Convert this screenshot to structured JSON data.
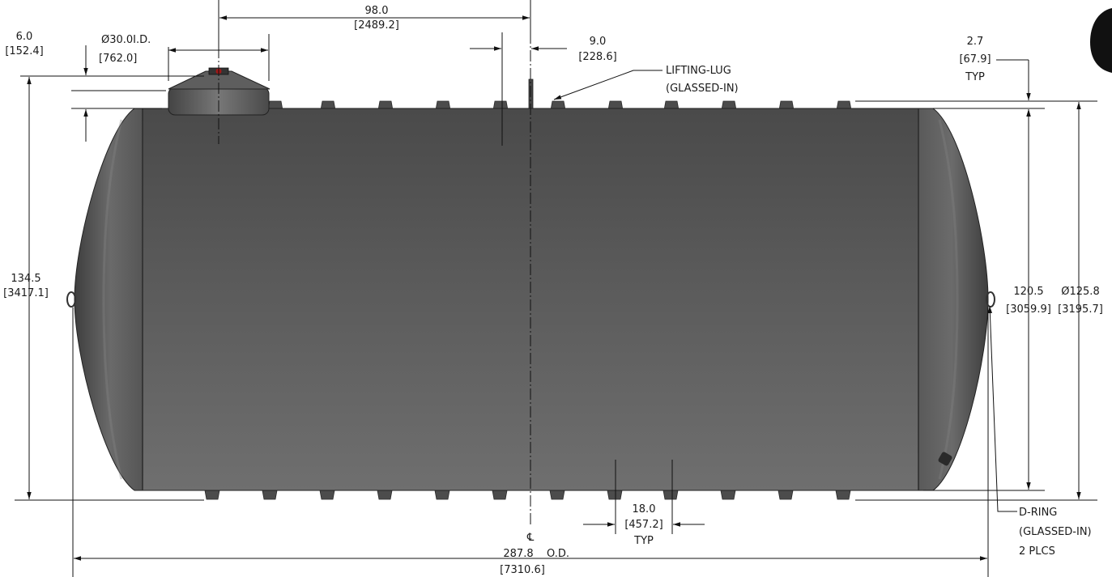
{
  "dimensions": {
    "manway_spacing": {
      "imperial": "98.0",
      "metric": "[2489.2]"
    },
    "manway_height": {
      "imperial": "6.0",
      "metric": "[152.4]"
    },
    "manway_diameter": {
      "imperial": "Ø30.0I.D.",
      "metric": "[762.0]"
    },
    "lug_offset": {
      "imperial": "9.0",
      "metric": "[228.6]"
    },
    "rib_height": {
      "imperial": "2.7",
      "metric": "[67.9]",
      "note": "TYP"
    },
    "overall_height": {
      "imperial": "134.5",
      "metric": "[3417.1]"
    },
    "shell_height": {
      "imperial": "120.5",
      "metric": "[3059.9]"
    },
    "outer_diameter": {
      "imperial": "Ø125.8",
      "metric": "[3195.7]"
    },
    "rib_spacing": {
      "imperial": "18.0",
      "metric": "[457.2]",
      "note": "TYP"
    },
    "overall_length": {
      "imperial": "287.8",
      "suffix": "O.D.",
      "metric": "[7310.6]"
    }
  },
  "callouts": {
    "lifting_lug": {
      "line1": "LIFTING-LUG",
      "line2": "(GLASSED-IN)"
    },
    "d_ring": {
      "line1": "D-RING",
      "line2": "(GLASSED-IN)",
      "line3": "2 PLCS"
    }
  },
  "centerline_symbol": "℄",
  "colors": {
    "tank_light": "#6e6e6e",
    "tank_dark": "#454545",
    "rib": "#505050",
    "line": "#111111"
  }
}
